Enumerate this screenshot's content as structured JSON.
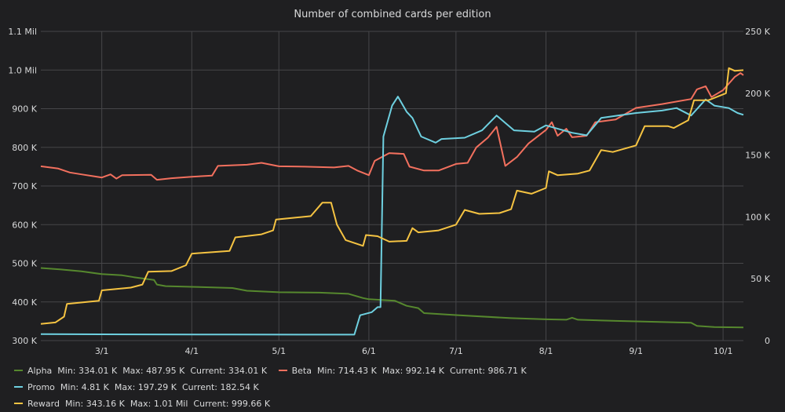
{
  "chart_data": {
    "type": "line",
    "title": "Number of combined cards per edition",
    "x_tick_labels": [
      "3/1",
      "4/1",
      "5/1",
      "6/1",
      "7/1",
      "8/1",
      "9/1",
      "10/1"
    ],
    "x_ticks": [
      "2018-03-01",
      "2018-04-01",
      "2018-05-01",
      "2018-06-01",
      "2018-07-01",
      "2018-08-01",
      "2018-09-01",
      "2018-10-01"
    ],
    "xlim": [
      "2018-02-08",
      "2018-10-08"
    ],
    "y_left": {
      "ticks": [
        300000,
        400000,
        500000,
        600000,
        700000,
        800000,
        900000,
        1000000,
        1100000
      ],
      "tick_labels": [
        "300 K",
        "400 K",
        "500 K",
        "600 K",
        "700 K",
        "800 K",
        "900 K",
        "1.0 Mil",
        "1.1 Mil"
      ],
      "ylim": [
        300000,
        1100000
      ]
    },
    "y_right": {
      "ticks": [
        0,
        50000,
        100000,
        150000,
        200000,
        250000
      ],
      "tick_labels": [
        "0",
        "50 K",
        "100 K",
        "150 K",
        "200 K",
        "250 K"
      ],
      "ylim": [
        0,
        250000
      ]
    },
    "grid": true,
    "legend_position": "bottom",
    "series": [
      {
        "name": "Alpha",
        "axis": "left",
        "color": "#56882e",
        "stats": "Min: 334.01 K  Max: 487.95 K  Current: 334.01 K",
        "points": [
          [
            "2018-02-08",
            487900
          ],
          [
            "2018-02-15",
            484000
          ],
          [
            "2018-02-22",
            479000
          ],
          [
            "2018-03-01",
            472000
          ],
          [
            "2018-03-08",
            469000
          ],
          [
            "2018-03-12",
            464000
          ],
          [
            "2018-03-19",
            457000
          ],
          [
            "2018-03-20",
            445000
          ],
          [
            "2018-03-23",
            441000
          ],
          [
            "2018-04-01",
            439000
          ],
          [
            "2018-04-15",
            436000
          ],
          [
            "2018-04-20",
            429000
          ],
          [
            "2018-05-01",
            425000
          ],
          [
            "2018-05-15",
            424000
          ],
          [
            "2018-05-25",
            421000
          ],
          [
            "2018-05-30",
            410000
          ],
          [
            "2018-06-01",
            407000
          ],
          [
            "2018-06-10",
            403000
          ],
          [
            "2018-06-14",
            390000
          ],
          [
            "2018-06-18",
            384000
          ],
          [
            "2018-06-20",
            371000
          ],
          [
            "2018-07-01",
            366000
          ],
          [
            "2018-07-20",
            358000
          ],
          [
            "2018-08-01",
            355000
          ],
          [
            "2018-08-08",
            354000
          ],
          [
            "2018-08-10",
            359000
          ],
          [
            "2018-08-12",
            354000
          ],
          [
            "2018-08-25",
            351000
          ],
          [
            "2018-09-20",
            346000
          ],
          [
            "2018-09-22",
            338000
          ],
          [
            "2018-09-28",
            335000
          ],
          [
            "2018-10-08",
            334010
          ]
        ]
      },
      {
        "name": "Beta",
        "axis": "left",
        "color": "#f2705e",
        "stats": "Min: 714.43 K  Max: 992.14 K  Current: 986.71 K",
        "points": [
          [
            "2018-02-08",
            751000
          ],
          [
            "2018-02-14",
            745000
          ],
          [
            "2018-02-18",
            735000
          ],
          [
            "2018-02-22",
            730000
          ],
          [
            "2018-03-01",
            722000
          ],
          [
            "2018-03-04",
            730000
          ],
          [
            "2018-03-06",
            719000
          ],
          [
            "2018-03-08",
            728000
          ],
          [
            "2018-03-18",
            729000
          ],
          [
            "2018-03-20",
            716000
          ],
          [
            "2018-03-25",
            720000
          ],
          [
            "2018-04-01",
            724000
          ],
          [
            "2018-04-08",
            727000
          ],
          [
            "2018-04-10",
            752000
          ],
          [
            "2018-04-20",
            755000
          ],
          [
            "2018-04-25",
            760000
          ],
          [
            "2018-05-01",
            751000
          ],
          [
            "2018-05-10",
            750000
          ],
          [
            "2018-05-20",
            748000
          ],
          [
            "2018-05-25",
            752000
          ],
          [
            "2018-05-28",
            740000
          ],
          [
            "2018-06-01",
            728000
          ],
          [
            "2018-06-03",
            765000
          ],
          [
            "2018-06-08",
            785000
          ],
          [
            "2018-06-13",
            783000
          ],
          [
            "2018-06-15",
            750000
          ],
          [
            "2018-06-20",
            740000
          ],
          [
            "2018-06-25",
            740000
          ],
          [
            "2018-07-01",
            757000
          ],
          [
            "2018-07-05",
            760000
          ],
          [
            "2018-07-08",
            800000
          ],
          [
            "2018-07-12",
            825000
          ],
          [
            "2018-07-15",
            853000
          ],
          [
            "2018-07-18",
            752000
          ],
          [
            "2018-07-22",
            775000
          ],
          [
            "2018-07-26",
            810000
          ],
          [
            "2018-08-01",
            845000
          ],
          [
            "2018-08-03",
            865000
          ],
          [
            "2018-08-05",
            830000
          ],
          [
            "2018-08-08",
            848000
          ],
          [
            "2018-08-10",
            826000
          ],
          [
            "2018-08-15",
            830000
          ],
          [
            "2018-08-18",
            865000
          ],
          [
            "2018-08-25",
            872000
          ],
          [
            "2018-09-01",
            902000
          ],
          [
            "2018-09-10",
            912000
          ],
          [
            "2018-09-20",
            925000
          ],
          [
            "2018-09-22",
            950000
          ],
          [
            "2018-09-25",
            958000
          ],
          [
            "2018-09-27",
            930000
          ],
          [
            "2018-10-01",
            948000
          ],
          [
            "2018-10-05",
            982000
          ],
          [
            "2018-10-07",
            992140
          ],
          [
            "2018-10-08",
            986710
          ]
        ]
      },
      {
        "name": "Promo",
        "axis": "right",
        "color": "#6ed0e0",
        "stats": "Min: 4.81 K  Max: 197.29 K  Current: 182.54 K",
        "points": [
          [
            "2018-02-08",
            5200
          ],
          [
            "2018-03-15",
            5000
          ],
          [
            "2018-04-15",
            4900
          ],
          [
            "2018-05-20",
            4810
          ],
          [
            "2018-05-27",
            4810
          ],
          [
            "2018-05-29",
            20500
          ],
          [
            "2018-06-02",
            23000
          ],
          [
            "2018-06-04",
            27000
          ],
          [
            "2018-06-05",
            27000
          ],
          [
            "2018-06-06",
            165000
          ],
          [
            "2018-06-09",
            190000
          ],
          [
            "2018-06-11",
            197290
          ],
          [
            "2018-06-14",
            185000
          ],
          [
            "2018-06-16",
            180000
          ],
          [
            "2018-06-19",
            165000
          ],
          [
            "2018-06-24",
            160000
          ],
          [
            "2018-06-26",
            163000
          ],
          [
            "2018-07-04",
            164000
          ],
          [
            "2018-07-10",
            170000
          ],
          [
            "2018-07-15",
            182000
          ],
          [
            "2018-07-17",
            178000
          ],
          [
            "2018-07-21",
            170000
          ],
          [
            "2018-07-28",
            169000
          ],
          [
            "2018-08-01",
            174000
          ],
          [
            "2018-08-10",
            168000
          ],
          [
            "2018-08-15",
            166000
          ],
          [
            "2018-08-20",
            180000
          ],
          [
            "2018-09-01",
            184000
          ],
          [
            "2018-09-10",
            186000
          ],
          [
            "2018-09-15",
            188000
          ],
          [
            "2018-09-20",
            182000
          ],
          [
            "2018-09-25",
            195000
          ],
          [
            "2018-09-28",
            190000
          ],
          [
            "2018-10-03",
            188000
          ],
          [
            "2018-10-06",
            184000
          ],
          [
            "2018-10-08",
            182540
          ]
        ]
      },
      {
        "name": "Reward",
        "axis": "left",
        "color": "#f5c342",
        "stats": "Min: 343.16 K  Max: 1.01 Mil  Current: 999.66 K",
        "points": [
          [
            "2018-02-08",
            343160
          ],
          [
            "2018-02-13",
            347000
          ],
          [
            "2018-02-16",
            362000
          ],
          [
            "2018-02-17",
            395000
          ],
          [
            "2018-02-28",
            403000
          ],
          [
            "2018-03-01",
            430000
          ],
          [
            "2018-03-11",
            437000
          ],
          [
            "2018-03-15",
            445000
          ],
          [
            "2018-03-17",
            478000
          ],
          [
            "2018-03-25",
            480000
          ],
          [
            "2018-03-30",
            495000
          ],
          [
            "2018-04-01",
            525000
          ],
          [
            "2018-04-14",
            532000
          ],
          [
            "2018-04-16",
            567000
          ],
          [
            "2018-04-25",
            575000
          ],
          [
            "2018-04-29",
            585000
          ],
          [
            "2018-04-30",
            613000
          ],
          [
            "2018-05-12",
            622000
          ],
          [
            "2018-05-16",
            657000
          ],
          [
            "2018-05-19",
            657000
          ],
          [
            "2018-05-21",
            600000
          ],
          [
            "2018-05-24",
            560000
          ],
          [
            "2018-05-30",
            545000
          ],
          [
            "2018-05-31",
            573000
          ],
          [
            "2018-06-04",
            570000
          ],
          [
            "2018-06-08",
            556000
          ],
          [
            "2018-06-14",
            558000
          ],
          [
            "2018-06-16",
            591000
          ],
          [
            "2018-06-18",
            580000
          ],
          [
            "2018-06-25",
            585000
          ],
          [
            "2018-07-01",
            600000
          ],
          [
            "2018-07-04",
            638000
          ],
          [
            "2018-07-09",
            628000
          ],
          [
            "2018-07-16",
            630000
          ],
          [
            "2018-07-20",
            640000
          ],
          [
            "2018-07-22",
            688000
          ],
          [
            "2018-07-27",
            680000
          ],
          [
            "2018-08-01",
            695000
          ],
          [
            "2018-08-02",
            738000
          ],
          [
            "2018-08-05",
            728000
          ],
          [
            "2018-08-12",
            732000
          ],
          [
            "2018-08-16",
            740000
          ],
          [
            "2018-08-20",
            793000
          ],
          [
            "2018-08-24",
            788000
          ],
          [
            "2018-09-01",
            805000
          ],
          [
            "2018-09-04",
            855000
          ],
          [
            "2018-09-12",
            855000
          ],
          [
            "2018-09-14",
            850000
          ],
          [
            "2018-09-19",
            870000
          ],
          [
            "2018-09-21",
            922000
          ],
          [
            "2018-09-26",
            922000
          ],
          [
            "2018-10-02",
            940000
          ],
          [
            "2018-10-03",
            1005000
          ],
          [
            "2018-10-05",
            998000
          ],
          [
            "2018-10-08",
            999660
          ]
        ]
      }
    ]
  }
}
